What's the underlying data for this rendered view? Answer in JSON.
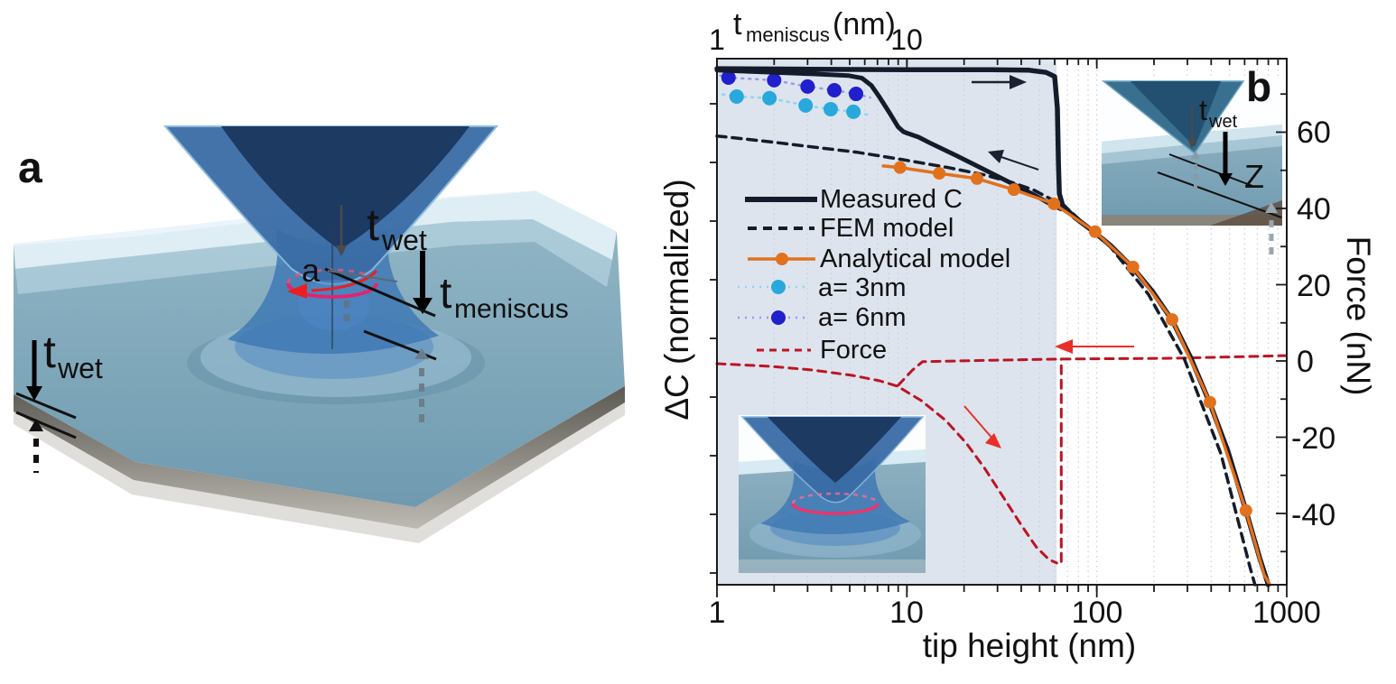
{
  "panel_a": {
    "label": "a",
    "annotations": {
      "t_sym": "t",
      "wet_sub": "wet",
      "meniscus_sub": "meniscus",
      "contact_radius_label": "a"
    }
  },
  "panel_b": {
    "label": "b",
    "inset_top_right": {
      "t_sym": "t",
      "wet_sub": "wet",
      "z_label": "Z"
    }
  },
  "chart": {
    "top_axis": {
      "title_main": "t",
      "title_sub": "meniscus",
      "title_unit": "(nm)",
      "ticks": [
        "1",
        "10"
      ]
    },
    "bottom_axis": {
      "title": "tip height (nm)",
      "ticks": [
        "1",
        "10",
        "100",
        "1000"
      ]
    },
    "left_axis": {
      "title": "ΔC (normalized)"
    },
    "right_axis": {
      "title": "Force (nN)",
      "ticks": [
        "60",
        "40",
        "20",
        "0",
        "-20",
        "-40"
      ]
    },
    "legend": {
      "measured": "Measured C",
      "fem": "FEM model",
      "analytical": "Analytical model",
      "a3": "a= 3nm",
      "a6": "a= 6nm",
      "force": "Force"
    }
  },
  "chart_data": {
    "type": "line",
    "x_axis": {
      "label": "tip height (nm)",
      "scale": "log",
      "range_nm": [
        1,
        1000
      ],
      "tick_values": [
        1,
        10,
        100,
        1000
      ]
    },
    "x_axis_top": {
      "label": "t_meniscus (nm)",
      "scale": "log",
      "tick_values": [
        1,
        10
      ]
    },
    "y_left": {
      "label": "ΔC (normalized)",
      "note": "axis has unlabeled ticks; series y values given as fraction of axis height (0=bottom, 1=top)"
    },
    "y_right": {
      "label": "Force (nN)",
      "ticks": [
        60,
        40,
        20,
        0,
        -20,
        -40
      ],
      "minor_ticks": [
        70,
        50,
        30,
        10,
        -10,
        -30,
        -50
      ],
      "range": [
        -58.7,
        79
      ]
    },
    "grid_x_nm": [
      2,
      3,
      4,
      5,
      6,
      7,
      8,
      9,
      10,
      20,
      30,
      40,
      50,
      60,
      70,
      80,
      90,
      100,
      200,
      300,
      400,
      500,
      600,
      700,
      800,
      900
    ],
    "shaded_region_nm": [
      1,
      61.5
    ],
    "legend_position": "upper left inside",
    "colors": {
      "measured": "#141c2b",
      "fem": "#141c2b",
      "analytical": "#e2711d",
      "a3": "#29a8dc",
      "a3_line": "#8fd4ee",
      "a6": "#2020cc",
      "a6_line": "#9a9ae8",
      "force": "#bb1522",
      "arrow_red": "#e92f28",
      "shade": "#dde4ee"
    },
    "series": [
      {
        "id": "force-retract",
        "name": "Force (retract, meniscus stretching)",
        "y_units": "nN",
        "color": "#bb1522",
        "width": 3,
        "dash": "9,7",
        "points": [
          [
            1,
            -0.7
          ],
          [
            1.9,
            -1.4
          ],
          [
            3.2,
            -2.4
          ],
          [
            5.2,
            -3.8
          ],
          [
            7.2,
            -5.2
          ],
          [
            8.9,
            -6.6
          ],
          [
            11.9,
            -10.4
          ],
          [
            16,
            -15.6
          ],
          [
            20.5,
            -21.5
          ],
          [
            25.7,
            -28.2
          ],
          [
            31.8,
            -35.3
          ],
          [
            39.7,
            -42.8
          ],
          [
            48,
            -48.8
          ],
          [
            56,
            -52.1
          ],
          [
            61.5,
            -53.0
          ]
        ]
      },
      {
        "id": "force-rupture",
        "name": "Force rupture jump",
        "y_units": "nN",
        "color": "#bb1522",
        "width": 3,
        "dash": "9,7",
        "points": [
          [
            65,
            -52.6
          ],
          [
            65,
            0.5
          ]
        ]
      },
      {
        "id": "force-approach",
        "name": "Force (approach, zero line)",
        "y_units": "nN",
        "color": "#bb1522",
        "width": 3,
        "dash": "9,7",
        "points": [
          [
            9.0,
            -6.4
          ],
          [
            10.7,
            -2.4
          ],
          [
            12.1,
            -0.2
          ],
          [
            28,
            0.2
          ],
          [
            65,
            0.5
          ],
          [
            256,
            0.7
          ],
          [
            995,
            1.4
          ]
        ]
      },
      {
        "id": "fem-model",
        "name": "FEM model",
        "y_units": "frac",
        "color": "#141c2b",
        "width": 3.5,
        "dash": "10,7",
        "points": [
          [
            1,
            0.853
          ],
          [
            1.9,
            0.842
          ],
          [
            3.2,
            0.832
          ],
          [
            5.5,
            0.822
          ],
          [
            9.5,
            0.808
          ],
          [
            16.5,
            0.793
          ],
          [
            25.6,
            0.779
          ],
          [
            35.6,
            0.765
          ],
          [
            46.8,
            0.75
          ],
          [
            58,
            0.732
          ],
          [
            68,
            0.719
          ],
          [
            98,
            0.667
          ],
          [
            118,
            0.642
          ],
          [
            187,
            0.552
          ],
          [
            289,
            0.429
          ],
          [
            450,
            0.249
          ],
          [
            640,
            0.034
          ],
          [
            680,
            0.0
          ]
        ]
      },
      {
        "id": "a3nm",
        "name": "a= 3nm",
        "y_units": "frac",
        "color": "#8fd4ee",
        "width": 2.5,
        "dash": "2,6",
        "marker_r": 8,
        "marker_color": "#29a8dc",
        "points": [
          [
            1.07,
            0.932
          ],
          [
            1.27,
            0.928
          ],
          [
            1.89,
            0.925
          ],
          [
            2.93,
            0.911
          ],
          [
            3.97,
            0.904
          ],
          [
            5.23,
            0.899
          ],
          [
            6.5,
            0.892
          ]
        ],
        "markers": [
          [
            1.27,
            0.928
          ],
          [
            1.89,
            0.925
          ],
          [
            2.93,
            0.911
          ],
          [
            3.97,
            0.904
          ],
          [
            5.23,
            0.899
          ]
        ]
      },
      {
        "id": "a6nm",
        "name": "a= 6nm",
        "y_units": "frac",
        "color": "#9a9ae8",
        "width": 2.5,
        "dash": "2,6",
        "marker_r": 8,
        "marker_color": "#2020cc",
        "points": [
          [
            1.04,
            0.968
          ],
          [
            1.15,
            0.964
          ],
          [
            2.0,
            0.959
          ],
          [
            3.0,
            0.947
          ],
          [
            4.15,
            0.94
          ],
          [
            5.4,
            0.933
          ],
          [
            6.4,
            0.926
          ]
        ],
        "markers": [
          [
            1.15,
            0.964
          ],
          [
            2.0,
            0.959
          ],
          [
            3.0,
            0.947
          ],
          [
            4.15,
            0.94
          ],
          [
            5.4,
            0.933
          ]
        ]
      },
      {
        "id": "measured-top",
        "name": "Measured C (flat branch + rupture drop + decay)",
        "y_units": "frac",
        "color": "#141c2b",
        "width": 5.5,
        "points": [
          [
            1,
            0.981
          ],
          [
            3,
            0.98
          ],
          [
            10,
            0.979
          ],
          [
            28,
            0.979
          ],
          [
            44,
            0.978
          ],
          [
            54,
            0.974
          ],
          [
            60,
            0.966
          ],
          [
            62,
            0.906
          ],
          [
            62.8,
            0.8
          ],
          [
            63.5,
            0.743
          ],
          [
            66,
            0.722
          ],
          [
            76,
            0.699
          ],
          [
            98,
            0.669
          ],
          [
            118,
            0.645
          ],
          [
            155,
            0.602
          ],
          [
            196,
            0.558
          ],
          [
            249,
            0.503
          ],
          [
            310,
            0.434
          ],
          [
            394,
            0.345
          ],
          [
            490,
            0.254
          ],
          [
            610,
            0.141
          ],
          [
            720,
            0.051
          ],
          [
            800,
            0.0
          ]
        ]
      },
      {
        "id": "measured-retract",
        "name": "Measured C (jump-in / diagonal branch)",
        "y_units": "frac",
        "color": "#141c2b",
        "width": 5,
        "points": [
          [
            1,
            0.978
          ],
          [
            3.2,
            0.971
          ],
          [
            4.9,
            0.968
          ],
          [
            5.8,
            0.963
          ],
          [
            6.5,
            0.949
          ],
          [
            7.2,
            0.926
          ],
          [
            8.1,
            0.897
          ],
          [
            9.0,
            0.87
          ],
          [
            9.6,
            0.861
          ],
          [
            10.1,
            0.858
          ],
          [
            11.5,
            0.851
          ],
          [
            13.2,
            0.84
          ],
          [
            18.4,
            0.815
          ],
          [
            25.6,
            0.789
          ],
          [
            35.6,
            0.763
          ],
          [
            46.8,
            0.741
          ],
          [
            58,
            0.722
          ],
          [
            65,
            0.714
          ]
        ]
      },
      {
        "id": "analytical",
        "name": "Analytical model",
        "y_units": "frac",
        "color": "#e2711d",
        "width": 3.5,
        "marker_r": 7,
        "marker_color": "#e2711d",
        "points": [
          [
            7.5,
            0.796
          ],
          [
            9.2,
            0.793
          ],
          [
            14.8,
            0.782
          ],
          [
            23.4,
            0.772
          ],
          [
            36.6,
            0.751
          ],
          [
            59.5,
            0.724
          ],
          [
            98,
            0.671
          ],
          [
            155,
            0.604
          ],
          [
            249,
            0.504
          ],
          [
            394,
            0.347
          ],
          [
            610,
            0.141
          ],
          [
            760,
            0.019
          ],
          [
            815,
            0.0
          ]
        ],
        "markers": [
          [
            9.2,
            0.793
          ],
          [
            14.8,
            0.782
          ],
          [
            23.4,
            0.772
          ],
          [
            36.6,
            0.751
          ],
          [
            59.5,
            0.724
          ],
          [
            98,
            0.671
          ],
          [
            155,
            0.604
          ],
          [
            249,
            0.504
          ],
          [
            394,
            0.347
          ],
          [
            610,
            0.141
          ]
        ]
      }
    ]
  }
}
